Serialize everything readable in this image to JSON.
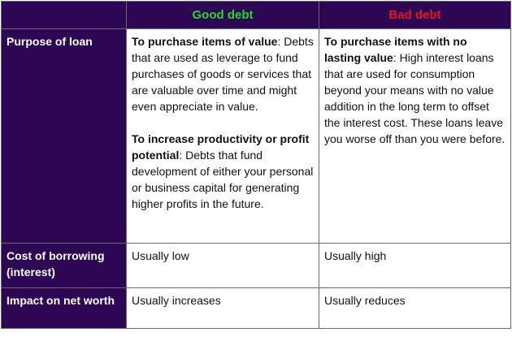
{
  "colors": {
    "header_bg": "#2d0753",
    "good": "#22dd22",
    "bad": "#e8141e"
  },
  "header": {
    "corner": "",
    "good_debt": "Good debt",
    "bad_debt": "Bad debt"
  },
  "rows": [
    {
      "label": "Purpose of loan",
      "good": {
        "p1_bold": "To purchase items of value",
        "p1_text": ": Debts that are used as leverage to fund purchases of goods or services that are valuable over time and might even appreciate in value.",
        "p2_bold": "To increase productivity or profit potential",
        "p2_text": ": Debts that fund development of either your personal or business capital for generating higher profits in the future."
      },
      "bad": {
        "p1_bold": "To purchase items with no lasting value",
        "p1_text": ": High interest loans that are used for consumption beyond your means with no value addition in the long term to offset the interest cost. These loans leave you worse off than you were before."
      }
    },
    {
      "label": "Cost of borrowing (interest)",
      "good": "Usually low",
      "bad": "Usually high"
    },
    {
      "label": "Impact on net worth",
      "good": "Usually increases",
      "bad": "Usually reduces"
    }
  ]
}
